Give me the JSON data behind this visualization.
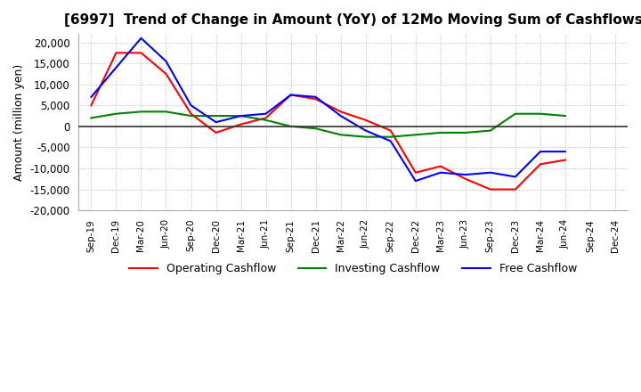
{
  "title": "[6997]  Trend of Change in Amount (YoY) of 12Mo Moving Sum of Cashflows",
  "ylabel": "Amount (million yen)",
  "ylim": [
    -20000,
    22000
  ],
  "yticks": [
    -20000,
    -15000,
    -10000,
    -5000,
    0,
    5000,
    10000,
    15000,
    20000
  ],
  "x_labels": [
    "Sep-19",
    "Dec-19",
    "Mar-20",
    "Jun-20",
    "Sep-20",
    "Dec-20",
    "Mar-21",
    "Jun-21",
    "Sep-21",
    "Dec-21",
    "Mar-22",
    "Jun-22",
    "Sep-22",
    "Dec-22",
    "Mar-23",
    "Jun-23",
    "Sep-23",
    "Dec-23",
    "Mar-24",
    "Jun-24",
    "Sep-24",
    "Dec-24"
  ],
  "operating": [
    5000,
    17500,
    17500,
    12500,
    3000,
    -1500,
    500,
    2000,
    7500,
    6500,
    3500,
    1500,
    -1000,
    -11000,
    -9500,
    -12500,
    -15000,
    -15000,
    -9000,
    -8000,
    null,
    null
  ],
  "investing": [
    2000,
    3000,
    3500,
    3500,
    2500,
    2500,
    2500,
    1500,
    0,
    -500,
    -2000,
    -2500,
    -2500,
    -2000,
    -1500,
    -1500,
    -1000,
    3000,
    3000,
    2500,
    null,
    null
  ],
  "free": [
    7000,
    14000,
    21000,
    15500,
    5000,
    1000,
    2500,
    3000,
    7500,
    7000,
    2500,
    -1000,
    -3500,
    -13000,
    -11000,
    -11500,
    -11000,
    -12000,
    -6000,
    -6000,
    null,
    null
  ],
  "operating_color": "#ff0000",
  "investing_color": "#008000",
  "free_color": "#0000ff",
  "bg_color": "#ffffff",
  "grid_color": "#aaaaaa"
}
